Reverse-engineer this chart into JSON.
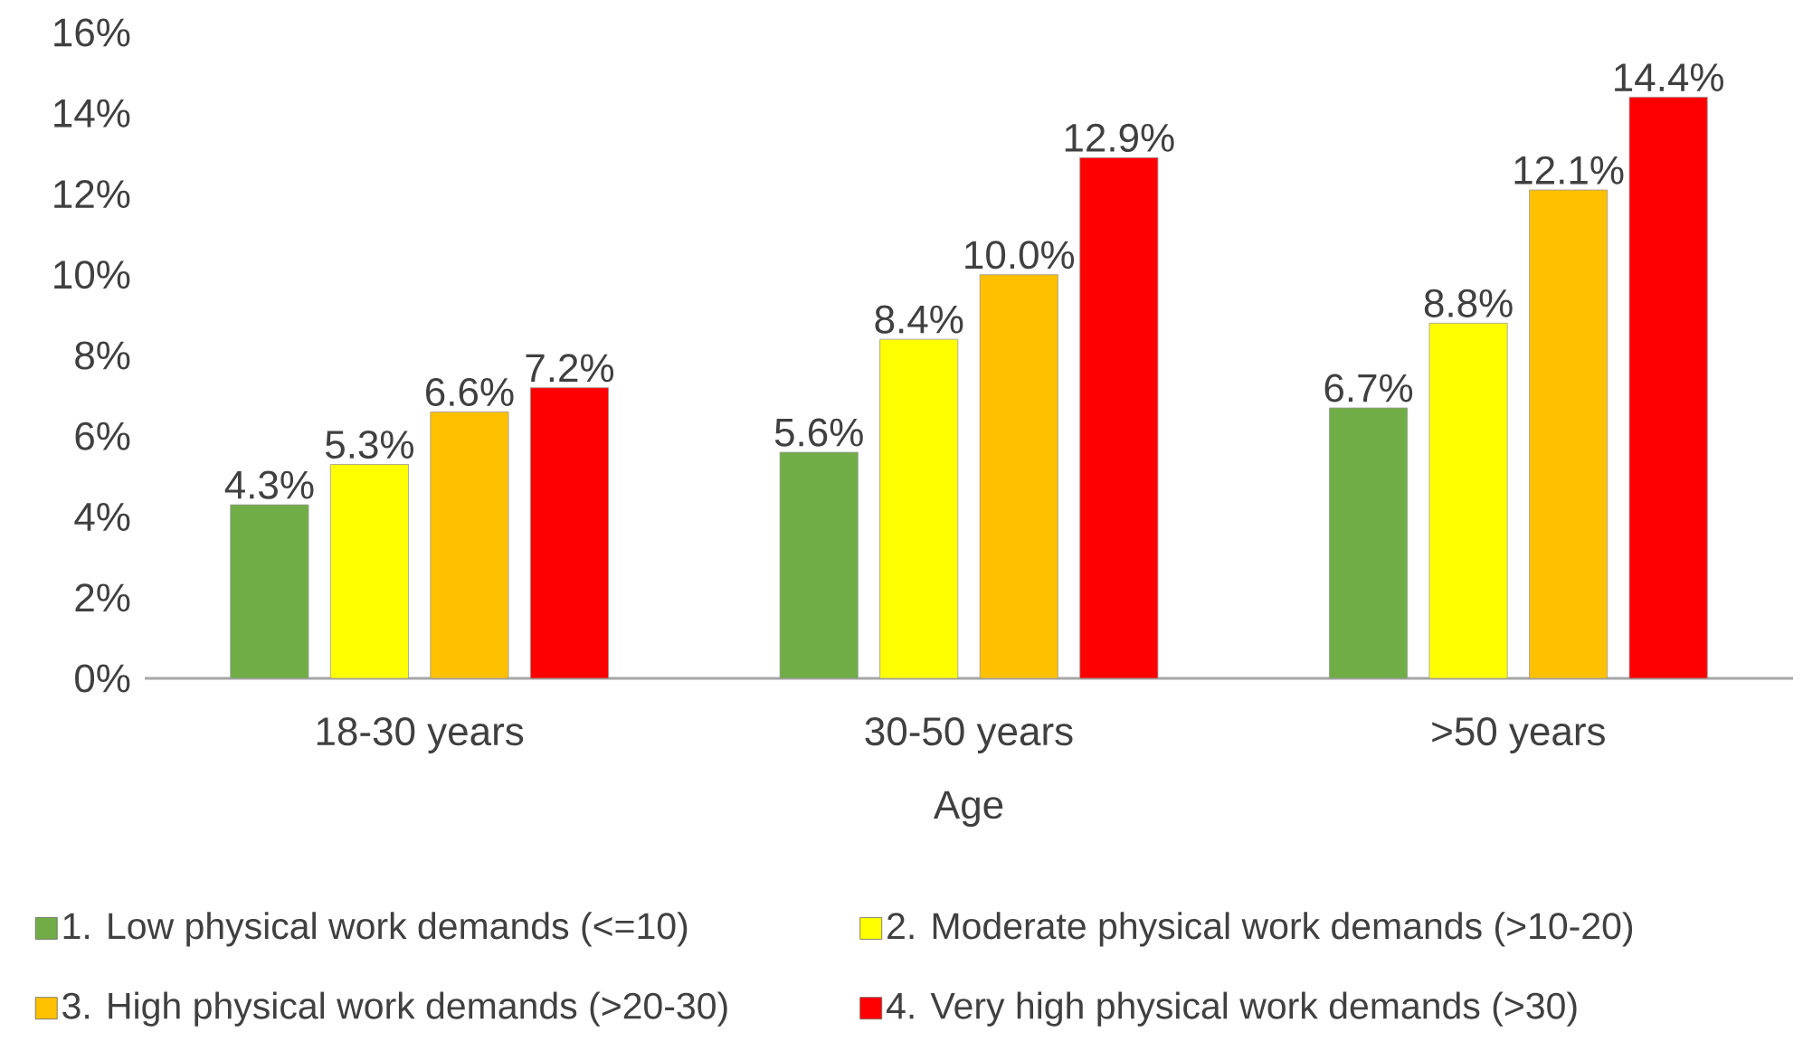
{
  "chart_data": {
    "type": "bar",
    "xlabel": "Age",
    "categories": [
      "18-30 years",
      "30-50 years",
      ">50 years"
    ],
    "series": [
      {
        "name": "1. Low physical work demands (<=10)",
        "color": "#70ad47",
        "values": [
          4.3,
          5.6,
          6.7
        ],
        "value_labels": [
          "4.3%",
          "5.6%",
          "6.7%"
        ]
      },
      {
        "name": "2. Moderate physical work demands (>10-20)",
        "color": "#ffff00",
        "values": [
          5.3,
          8.4,
          8.8
        ],
        "value_labels": [
          "5.3%",
          "8.4%",
          "8.8%"
        ]
      },
      {
        "name": "3. High physical work demands (>20-30)",
        "color": "#ffc000",
        "values": [
          6.6,
          10.0,
          12.1
        ],
        "value_labels": [
          "6.6%",
          "10.0%",
          "12.1%"
        ]
      },
      {
        "name": "4. Very high physical work demands (>30)",
        "color": "#ff0000",
        "values": [
          7.2,
          12.9,
          14.4
        ],
        "value_labels": [
          "7.2%",
          "12.9%",
          "14.4%"
        ]
      }
    ],
    "ylim": [
      0,
      16
    ],
    "yticks": [
      {
        "value": 0,
        "label": "0%"
      },
      {
        "value": 2,
        "label": "2%"
      },
      {
        "value": 4,
        "label": "4%"
      },
      {
        "value": 6,
        "label": "6%"
      },
      {
        "value": 8,
        "label": "8%"
      },
      {
        "value": 10,
        "label": "10%"
      },
      {
        "value": 12,
        "label": "12%"
      },
      {
        "value": 14,
        "label": "14%"
      },
      {
        "value": 16,
        "label": "16%"
      }
    ],
    "legend": "bottom",
    "grid": false
  }
}
